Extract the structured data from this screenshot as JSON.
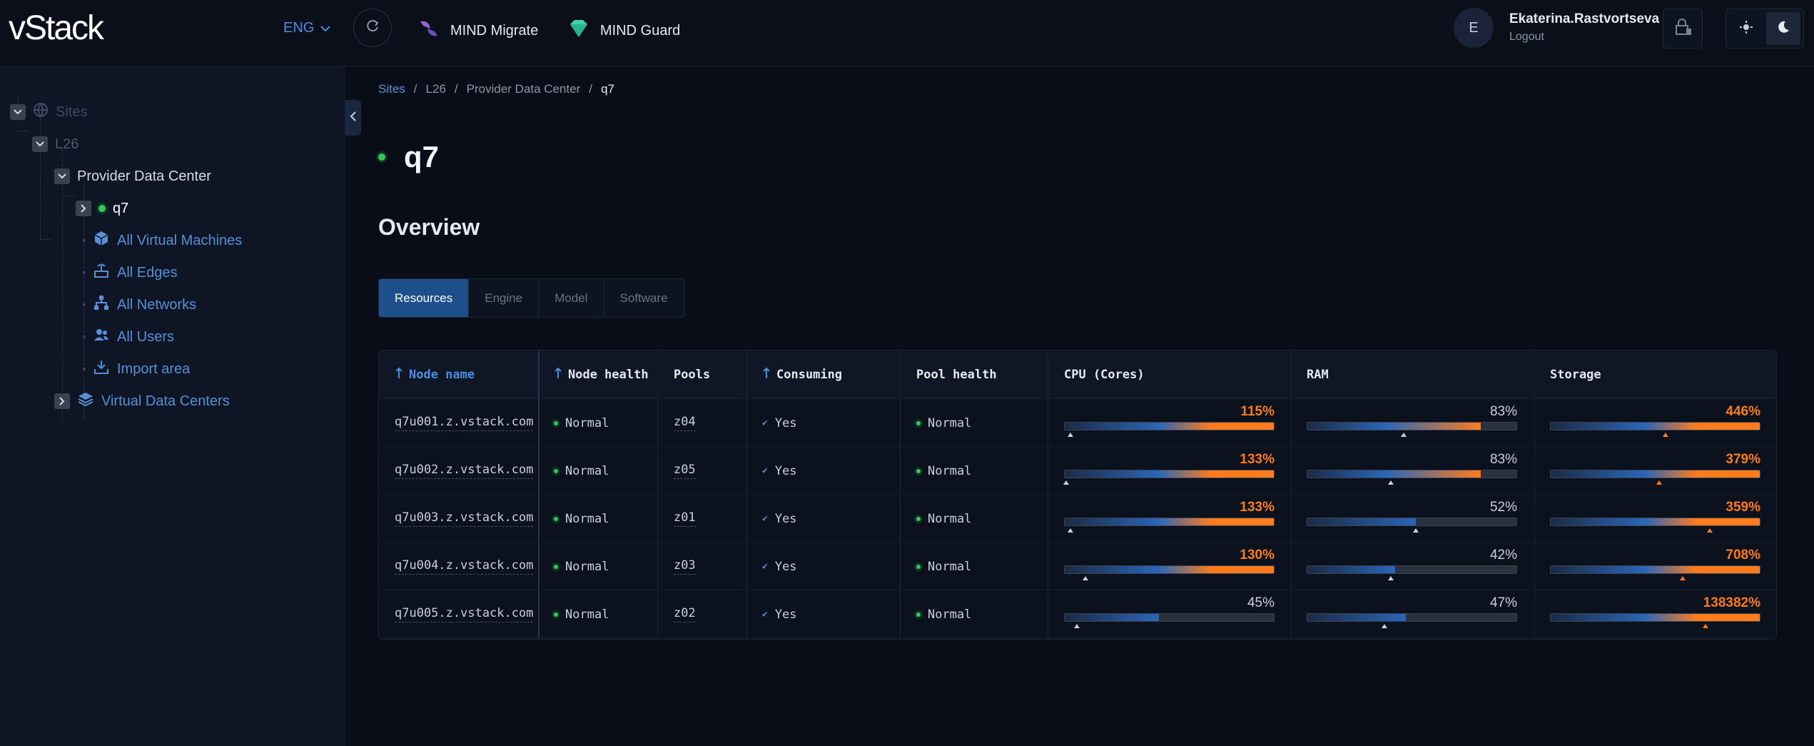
{
  "header": {
    "logo": "vStack",
    "language": "ENG",
    "apps": [
      {
        "label": "MIND Migrate"
      },
      {
        "label": "MIND Guard"
      }
    ],
    "user": {
      "initial": "E",
      "name": "Ekaterina.Rastvortseva",
      "logout": "Logout"
    }
  },
  "sidebar": {
    "root": "Sites",
    "site": "L26",
    "dc": "Provider Data Center",
    "cluster": "q7",
    "items": [
      {
        "label": "All Virtual Machines",
        "icon": "cube-icon"
      },
      {
        "label": "All Edges",
        "icon": "router-icon"
      },
      {
        "label": "All Networks",
        "icon": "network-icon"
      },
      {
        "label": "All Users",
        "icon": "users-icon"
      },
      {
        "label": "Import area",
        "icon": "download-icon"
      }
    ],
    "vdc": "Virtual Data Centers"
  },
  "breadcrumb": [
    "Sites",
    "L26",
    "Provider Data Center",
    "q7"
  ],
  "page": {
    "title": "q7",
    "section": "Overview"
  },
  "tabs": [
    "Resources",
    "Engine",
    "Model",
    "Software"
  ],
  "active_tab": "Resources",
  "table": {
    "columns": [
      "Node name",
      "Node health",
      "Pools",
      "Consuming",
      "Pool health",
      "CPU (Cores)",
      "RAM",
      "Storage"
    ],
    "rows": [
      {
        "node": "q7u001.z.vstack.com",
        "health": "Normal",
        "pool": "z04",
        "consuming": "Yes",
        "pool_health": "Normal",
        "cpu": {
          "label": "115%",
          "value": 1.15,
          "mark": 0.03
        },
        "ram": {
          "label": "83%",
          "value": 0.83,
          "mark": 0.46
        },
        "storage": {
          "label": "446%",
          "value": 4.46,
          "mark": 0.55
        }
      },
      {
        "node": "q7u002.z.vstack.com",
        "health": "Normal",
        "pool": "z05",
        "consuming": "Yes",
        "pool_health": "Normal",
        "cpu": {
          "label": "133%",
          "value": 1.33,
          "mark": 0.01
        },
        "ram": {
          "label": "83%",
          "value": 0.83,
          "mark": 0.4
        },
        "storage": {
          "label": "379%",
          "value": 3.79,
          "mark": 0.52
        }
      },
      {
        "node": "q7u003.z.vstack.com",
        "health": "Normal",
        "pool": "z01",
        "consuming": "Yes",
        "pool_health": "Normal",
        "cpu": {
          "label": "133%",
          "value": 1.33,
          "mark": 0.03
        },
        "ram": {
          "label": "52%",
          "value": 0.52,
          "mark": 0.52
        },
        "storage": {
          "label": "359%",
          "value": 3.59,
          "mark": 0.76
        }
      },
      {
        "node": "q7u004.z.vstack.com",
        "health": "Normal",
        "pool": "z03",
        "consuming": "Yes",
        "pool_health": "Normal",
        "cpu": {
          "label": "130%",
          "value": 1.3,
          "mark": 0.1
        },
        "ram": {
          "label": "42%",
          "value": 0.42,
          "mark": 0.4
        },
        "storage": {
          "label": "708%",
          "value": 7.08,
          "mark": 0.63
        }
      },
      {
        "node": "q7u005.z.vstack.com",
        "health": "Normal",
        "pool": "z02",
        "consuming": "Yes",
        "pool_health": "Normal",
        "cpu": {
          "label": "45%",
          "value": 0.45,
          "mark": 0.06
        },
        "ram": {
          "label": "47%",
          "value": 0.47,
          "mark": 0.37
        },
        "storage": {
          "label": "138382%",
          "value": 1383.82,
          "mark": 0.74
        }
      }
    ]
  },
  "colors": {
    "accent": "#4c8de0",
    "over": "#ff7b1c",
    "ok": "#34c759",
    "bar_blue": "#2a66b8"
  }
}
